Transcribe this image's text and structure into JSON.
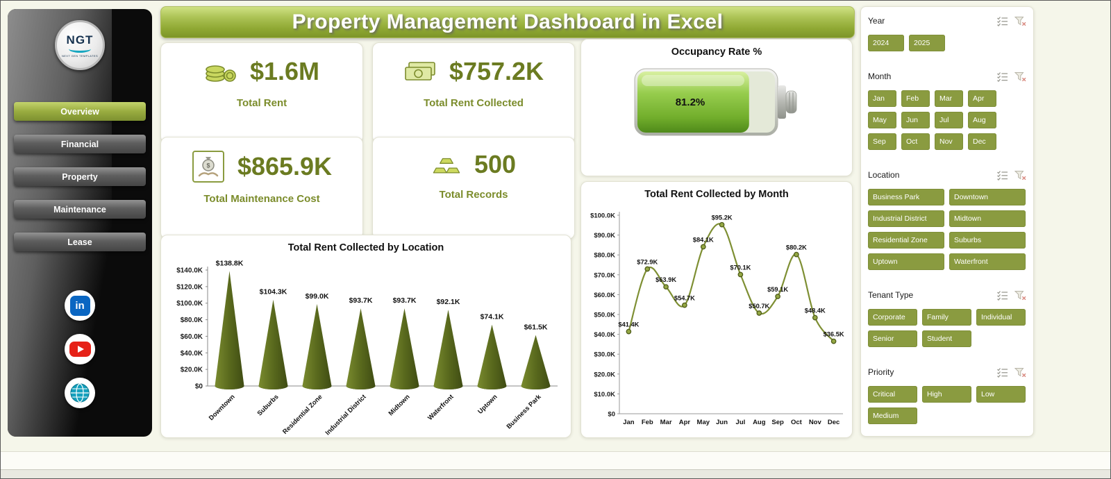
{
  "header": {
    "title": "Property Management Dashboard in Excel"
  },
  "sidebar": {
    "logo": {
      "text": "NGT",
      "subtext": "NEXT GEN TEMPLATES"
    },
    "nav_items": [
      {
        "label": "Overview",
        "active": true
      },
      {
        "label": "Financial",
        "active": false
      },
      {
        "label": "Property",
        "active": false
      },
      {
        "label": "Maintenance",
        "active": false
      },
      {
        "label": "Lease",
        "active": false
      }
    ],
    "social_icons": [
      "linkedin-icon",
      "youtube-icon",
      "globe-icon"
    ]
  },
  "kpi_cards": [
    {
      "value": "$1.6M",
      "label": "Total Rent",
      "icon": "coins-icon"
    },
    {
      "value": "$757.2K",
      "label": "Total Rent Collected",
      "icon": "banknote-icon"
    },
    {
      "value": "$865.9K",
      "label": "Total Maintenance Cost",
      "icon": "hand-money-icon"
    },
    {
      "value": "500",
      "label": "Total Records",
      "icon": "gold-bars-icon"
    }
  ],
  "occupancy": {
    "title": "Occupancy Rate %",
    "value_label": "81.2%",
    "percent": 81.2
  },
  "chart_data": [
    {
      "type": "bar",
      "style": "cone",
      "title": "Total Rent Collected by Location",
      "categories": [
        "Downtown",
        "Suburbs",
        "Residential Zone",
        "Industrial District",
        "Midtown",
        "Waterfront",
        "Uptown",
        "Business Park"
      ],
      "values": [
        138.8,
        104.3,
        99.0,
        93.7,
        93.7,
        92.1,
        74.1,
        61.5
      ],
      "data_labels": [
        "$138.8K",
        "$104.3K",
        "$99.0K",
        "$93.7K",
        "$93.7K",
        "$92.1K",
        "$74.1K",
        "$61.5K"
      ],
      "unit": "thousand USD",
      "ylim": [
        0,
        140
      ],
      "ytick_step": 20,
      "ytick_labels": [
        "$0",
        "$20.0K",
        "$40.0K",
        "$60.0K",
        "$80.0K",
        "$100.0K",
        "$120.0K",
        "$140.0K"
      ],
      "grid": false,
      "legend": "none"
    },
    {
      "type": "line",
      "title": "Total Rent Collected by Month",
      "categories": [
        "Jan",
        "Feb",
        "Mar",
        "Apr",
        "May",
        "Jun",
        "Jul",
        "Aug",
        "Sep",
        "Oct",
        "Nov",
        "Dec"
      ],
      "values": [
        41.4,
        72.9,
        63.9,
        54.7,
        84.1,
        95.2,
        70.1,
        50.7,
        59.1,
        80.2,
        48.4,
        36.5
      ],
      "data_labels": [
        "$41.4K",
        "$72.9K",
        "$63.9K",
        "$54.7K",
        "$84.1K",
        "$95.2K",
        "$70.1K",
        "$50.7K",
        "$59.1K",
        "$80.2K",
        "$48.4K",
        "$36.5K"
      ],
      "unit": "thousand USD",
      "ylim": [
        0,
        100
      ],
      "ytick_step": 10,
      "ytick_labels": [
        "$0",
        "$10.0K",
        "$20.0K",
        "$30.0K",
        "$40.0K",
        "$50.0K",
        "$60.0K",
        "$70.0K",
        "$80.0K",
        "$90.0K",
        "$100.0K"
      ],
      "grid": false,
      "legend": "none"
    }
  ],
  "filters": [
    {
      "title": "Year",
      "layout": "year",
      "options": [
        "2024",
        "2025"
      ]
    },
    {
      "title": "Month",
      "layout": "month",
      "options": [
        "Jan",
        "Feb",
        "Mar",
        "Apr",
        "May",
        "Jun",
        "Jul",
        "Aug",
        "Sep",
        "Oct",
        "Nov",
        "Dec"
      ]
    },
    {
      "title": "Location",
      "layout": "two",
      "options": [
        "Business Park",
        "Downtown",
        "Industrial District",
        "Midtown",
        "Residential Zone",
        "Suburbs",
        "Uptown",
        "Waterfront"
      ]
    },
    {
      "title": "Tenant Type",
      "layout": "flow",
      "options": [
        "Corporate",
        "Family",
        "Individual",
        "Senior",
        "Student"
      ]
    },
    {
      "title": "Priority",
      "layout": "flow",
      "options": [
        "Critical",
        "High",
        "Low",
        "Medium"
      ]
    }
  ],
  "colors": {
    "accent": "#8a9b40",
    "accent_dark": "#5c6b1e",
    "line": "#7e8f33",
    "value_text": "#6b7b21",
    "battery_green": "#8cc63f",
    "linkedin_blue": "#0a66c2",
    "youtube_red": "#e62117",
    "globe_teal": "#14a0bd"
  }
}
